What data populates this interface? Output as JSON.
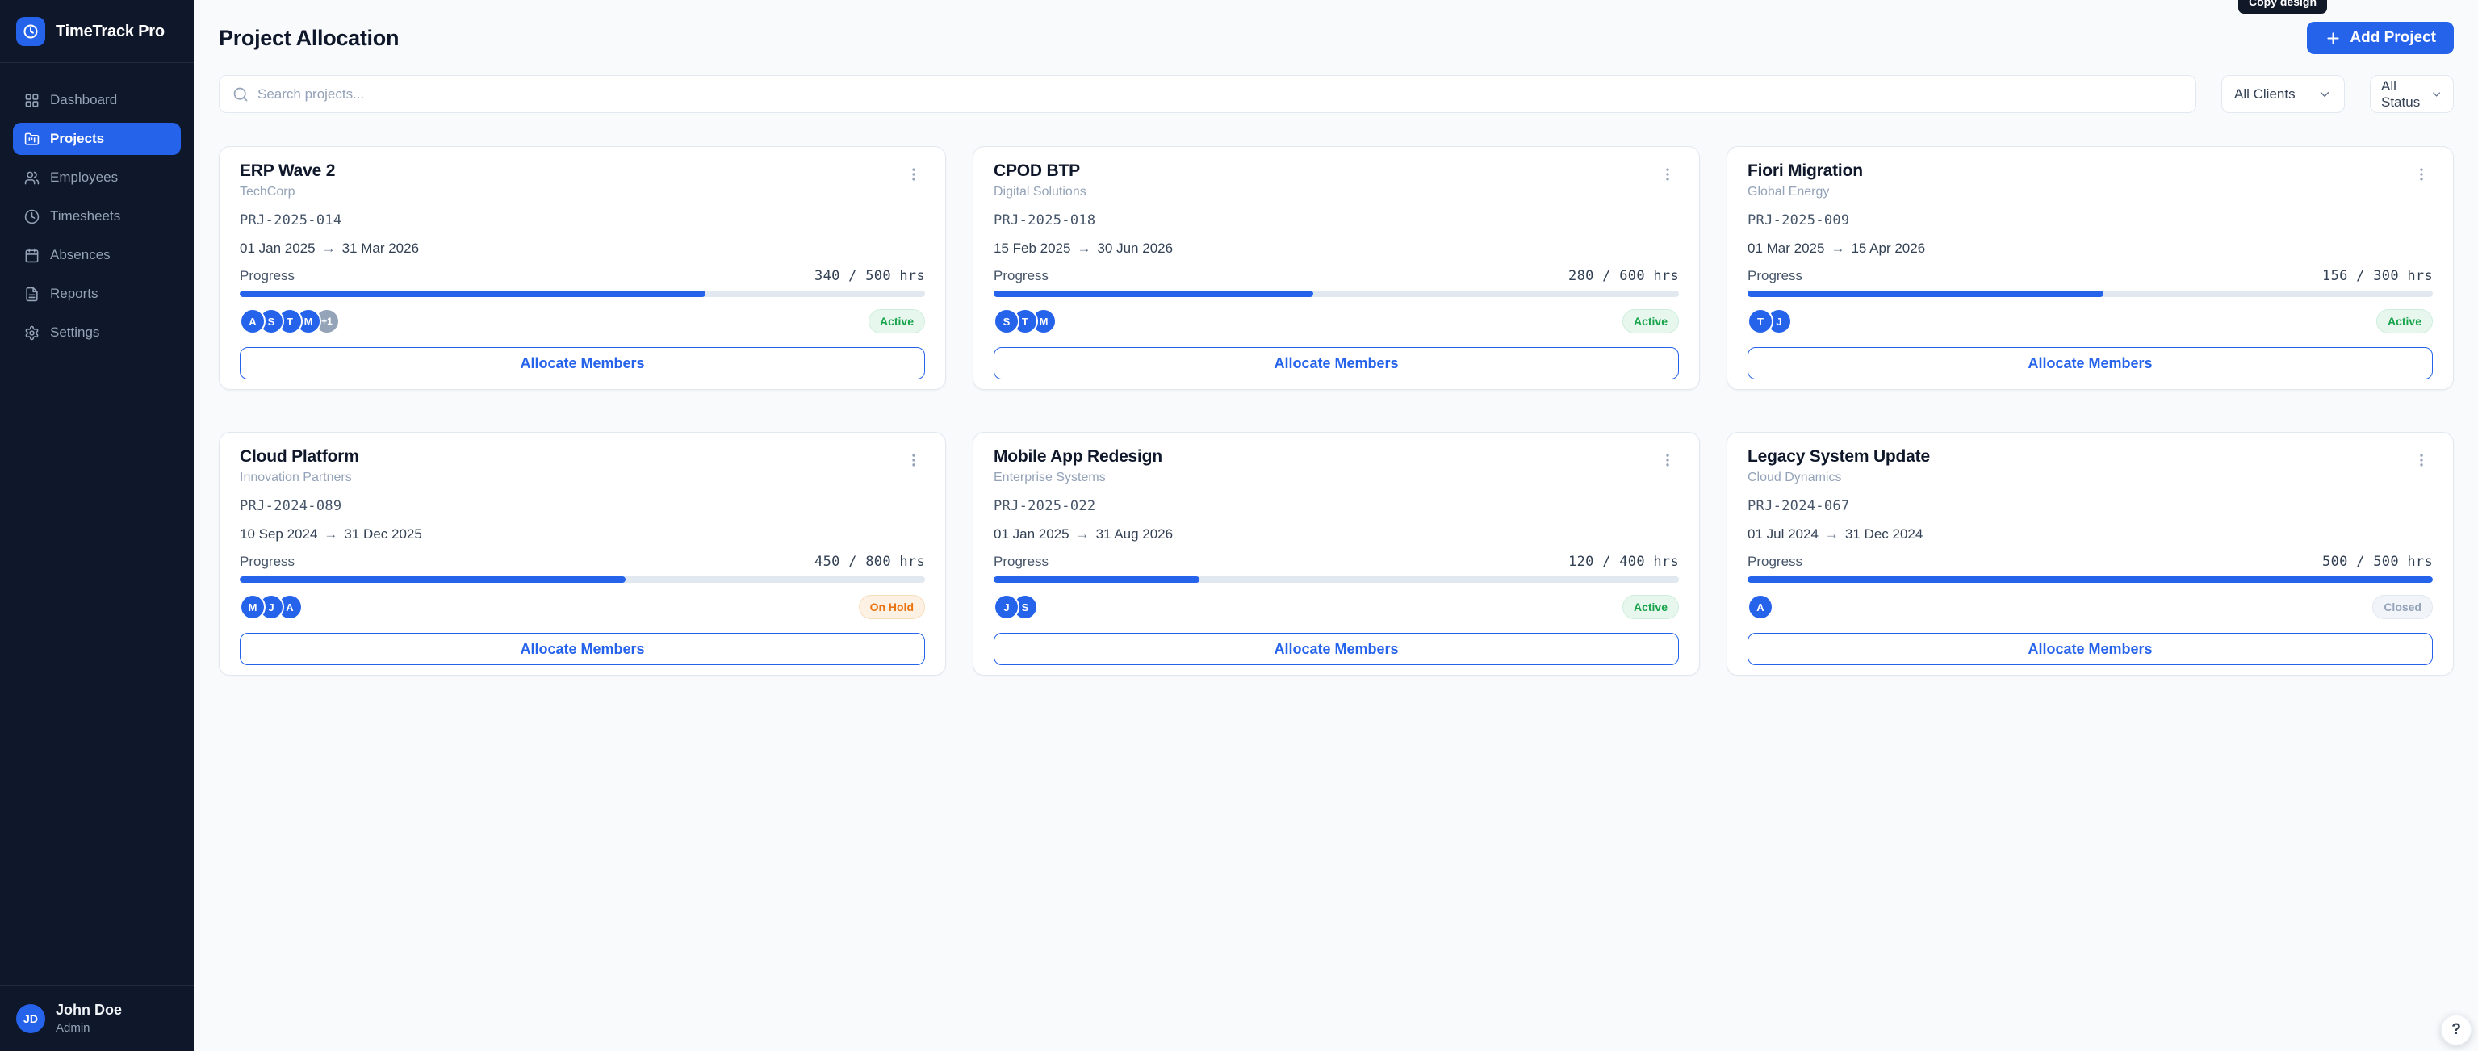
{
  "app": {
    "brand": "TimeTrack Pro",
    "tooltip": "Copy design",
    "help": "?"
  },
  "sidebar": {
    "items": [
      {
        "label": "Dashboard"
      },
      {
        "label": "Projects",
        "active": true
      },
      {
        "label": "Employees"
      },
      {
        "label": "Timesheets"
      },
      {
        "label": "Absences"
      },
      {
        "label": "Reports"
      },
      {
        "label": "Settings"
      }
    ],
    "user": {
      "initials": "JD",
      "name": "John Doe",
      "role": "Admin"
    }
  },
  "header": {
    "title": "Project Allocation",
    "add_button": "Add Project"
  },
  "filters": {
    "search_placeholder": "Search projects...",
    "clients": "All Clients",
    "status": "All Status"
  },
  "labels": {
    "progress": "Progress",
    "allocate": "Allocate Members",
    "arrow": "→"
  },
  "colors": {
    "primary": "#2563eb",
    "sidebar_bg": "#0f172a",
    "status_active": "#16a34a",
    "status_on_hold": "#e97412",
    "status_closed": "#94a3b8"
  },
  "projects": [
    {
      "name": "ERP Wave 2",
      "client": "TechCorp",
      "code": "PRJ-2025-014",
      "start": "01 Jan 2025",
      "end": "31 Mar 2026",
      "progress": {
        "current": 340,
        "total": 500,
        "unit": "hrs",
        "display": "340 / 500 hrs"
      },
      "avatars": [
        "A",
        "S",
        "T",
        "M",
        "+1"
      ],
      "status": "Active"
    },
    {
      "name": "CPOD BTP",
      "client": "Digital Solutions",
      "code": "PRJ-2025-018",
      "start": "15 Feb 2025",
      "end": "30 Jun 2026",
      "progress": {
        "current": 280,
        "total": 600,
        "unit": "hrs",
        "display": "280 / 600 hrs"
      },
      "avatars": [
        "S",
        "T",
        "M"
      ],
      "status": "Active"
    },
    {
      "name": "Fiori Migration",
      "client": "Global Energy",
      "code": "PRJ-2025-009",
      "start": "01 Mar 2025",
      "end": "15 Apr 2026",
      "progress": {
        "current": 156,
        "total": 300,
        "unit": "hrs",
        "display": "156 / 300 hrs"
      },
      "avatars": [
        "T",
        "J"
      ],
      "status": "Active"
    },
    {
      "name": "Cloud Platform",
      "client": "Innovation Partners",
      "code": "PRJ-2024-089",
      "start": "10 Sep 2024",
      "end": "31 Dec 2025",
      "progress": {
        "current": 450,
        "total": 800,
        "unit": "hrs",
        "display": "450 / 800 hrs"
      },
      "avatars": [
        "M",
        "J",
        "A"
      ],
      "status": "On Hold"
    },
    {
      "name": "Mobile App Redesign",
      "client": "Enterprise Systems",
      "code": "PRJ-2025-022",
      "start": "01 Jan 2025",
      "end": "31 Aug 2026",
      "progress": {
        "current": 120,
        "total": 400,
        "unit": "hrs",
        "display": "120 / 400 hrs"
      },
      "avatars": [
        "J",
        "S"
      ],
      "status": "Active"
    },
    {
      "name": "Legacy System Update",
      "client": "Cloud Dynamics",
      "code": "PRJ-2024-067",
      "start": "01 Jul 2024",
      "end": "31 Dec 2024",
      "progress": {
        "current": 500,
        "total": 500,
        "unit": "hrs",
        "display": "500 / 500 hrs"
      },
      "avatars": [
        "A"
      ],
      "status": "Closed"
    }
  ]
}
